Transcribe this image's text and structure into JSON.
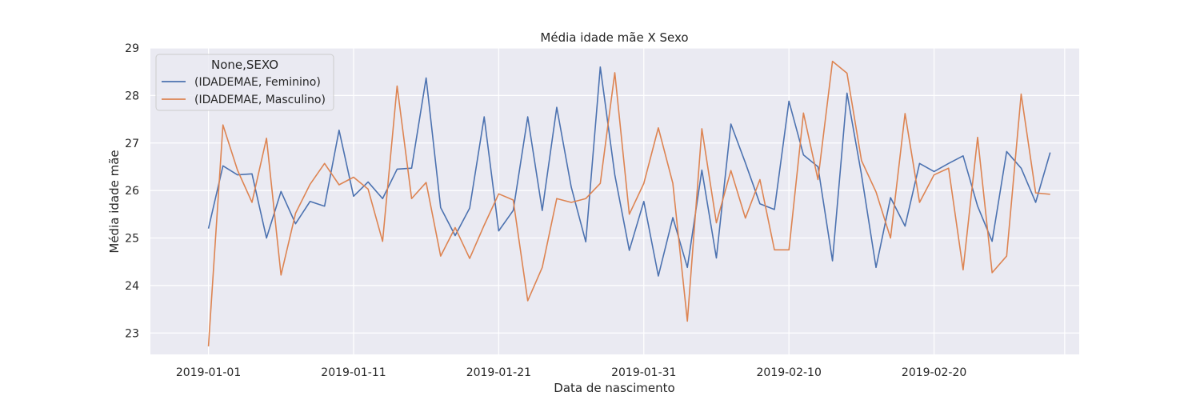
{
  "chart_data": {
    "type": "line",
    "title": "Média idade mãe X Sexo",
    "xlabel": "Data de nascimento",
    "ylabel": "Média idade mãe",
    "ylim": [
      22.55,
      29
    ],
    "yticks": [
      23,
      24,
      25,
      26,
      27,
      28,
      29
    ],
    "xlim": [
      "2018-12-28",
      "2019-03-02"
    ],
    "xticks": [
      "2019-01-01",
      "2019-01-11",
      "2019-01-21",
      "2019-01-31",
      "2019-02-10",
      "2019-02-20"
    ],
    "grid": true,
    "legend": {
      "title": "None,SEXO",
      "position": "top-left"
    },
    "x": [
      "2019-01-01",
      "2019-01-02",
      "2019-01-03",
      "2019-01-04",
      "2019-01-05",
      "2019-01-06",
      "2019-01-07",
      "2019-01-08",
      "2019-01-09",
      "2019-01-10",
      "2019-01-11",
      "2019-01-12",
      "2019-01-13",
      "2019-01-14",
      "2019-01-15",
      "2019-01-16",
      "2019-01-17",
      "2019-01-18",
      "2019-01-19",
      "2019-01-20",
      "2019-01-21",
      "2019-01-22",
      "2019-01-23",
      "2019-01-24",
      "2019-01-25",
      "2019-01-26",
      "2019-01-27",
      "2019-01-28",
      "2019-01-29",
      "2019-01-30",
      "2019-01-31",
      "2019-02-01",
      "2019-02-02",
      "2019-02-03",
      "2019-02-04",
      "2019-02-05",
      "2019-02-06",
      "2019-02-07",
      "2019-02-08",
      "2019-02-09",
      "2019-02-10",
      "2019-02-11",
      "2019-02-12",
      "2019-02-13",
      "2019-02-14",
      "2019-02-15",
      "2019-02-16",
      "2019-02-17",
      "2019-02-18",
      "2019-02-19",
      "2019-02-20",
      "2019-02-21",
      "2019-02-22",
      "2019-02-23",
      "2019-02-24",
      "2019-02-25",
      "2019-02-26",
      "2019-02-27",
      "2019-02-28"
    ],
    "series": [
      {
        "name": "(IDADEMAE, Feminino)",
        "color": "#4c72b0",
        "values": [
          25.2,
          26.52,
          26.33,
          26.35,
          25.0,
          25.98,
          25.3,
          25.77,
          25.67,
          27.27,
          25.88,
          26.18,
          25.83,
          26.45,
          26.47,
          28.37,
          25.64,
          25.05,
          25.63,
          27.55,
          25.15,
          25.58,
          27.55,
          25.58,
          27.75,
          26.07,
          24.92,
          28.6,
          26.33,
          24.74,
          25.77,
          24.2,
          25.43,
          24.38,
          26.43,
          24.58,
          27.4,
          26.58,
          25.72,
          25.6,
          27.88,
          26.75,
          26.5,
          24.52,
          28.05,
          26.33,
          24.38,
          25.85,
          25.25,
          26.57,
          26.4,
          26.57,
          26.73,
          25.67,
          24.93,
          26.82,
          26.47,
          25.75,
          26.8
        ]
      },
      {
        "name": "(IDADEMAE, Masculino)",
        "color": "#dd8452",
        "values": [
          22.72,
          27.38,
          26.43,
          25.75,
          27.1,
          24.22,
          25.52,
          26.13,
          26.57,
          26.12,
          26.28,
          26.03,
          24.93,
          28.2,
          25.83,
          26.17,
          24.62,
          25.22,
          24.57,
          25.27,
          25.93,
          25.8,
          23.68,
          24.38,
          25.83,
          25.75,
          25.83,
          26.15,
          28.48,
          25.5,
          26.15,
          27.32,
          26.15,
          23.25,
          27.3,
          25.32,
          26.42,
          25.42,
          26.23,
          24.75,
          24.75,
          27.63,
          26.23,
          28.72,
          28.47,
          26.63,
          25.97,
          25.0,
          27.62,
          25.75,
          26.33,
          26.47,
          24.33,
          27.12,
          24.27,
          24.62,
          28.03,
          25.95,
          25.92
        ]
      }
    ]
  }
}
